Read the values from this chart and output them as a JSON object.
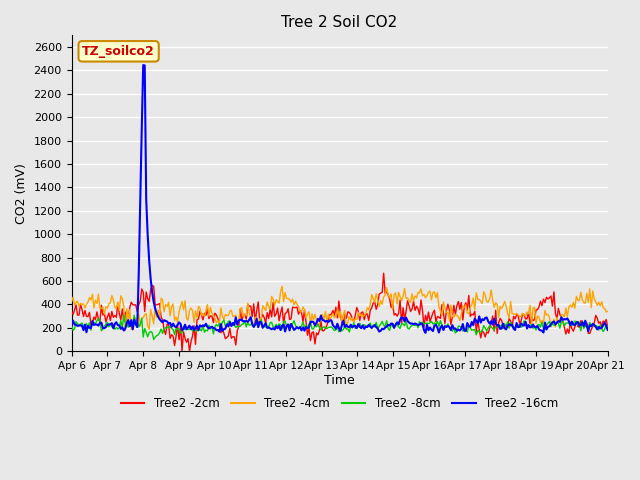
{
  "title": "Tree 2 Soil CO2",
  "xlabel": "Time",
  "ylabel": "CO2 (mV)",
  "ylim": [
    0,
    2700
  ],
  "yticks": [
    0,
    200,
    400,
    600,
    800,
    1000,
    1200,
    1400,
    1600,
    1800,
    2000,
    2200,
    2400,
    2600
  ],
  "bg_color": "#e8e8e8",
  "plot_bg_color": "#e8e8e8",
  "grid_color": "#ffffff",
  "legend_label": "TZ_soilco2",
  "legend_bg": "#ffffcc",
  "legend_border": "#cc8800",
  "series_colors": {
    "2cm": "#ff0000",
    "4cm": "#ffa500",
    "8cm": "#00cc00",
    "16cm": "#0000ff"
  },
  "series_labels": {
    "2cm": "Tree2 -2cm",
    "4cm": "Tree2 -4cm",
    "8cm": "Tree2 -8cm",
    "16cm": "Tree2 -16cm"
  },
  "xstart": 6,
  "xend": 21,
  "xtick_labels": [
    "Apr 6",
    "Apr 7",
    "Apr 8",
    "Apr 9",
    "Apr 10",
    "Apr 11",
    "Apr 12",
    "Apr 13",
    "Apr 14",
    "Apr 15",
    "Apr 16",
    "Apr 17",
    "Apr 18",
    "Apr 19",
    "Apr 20",
    "Apr 21"
  ]
}
